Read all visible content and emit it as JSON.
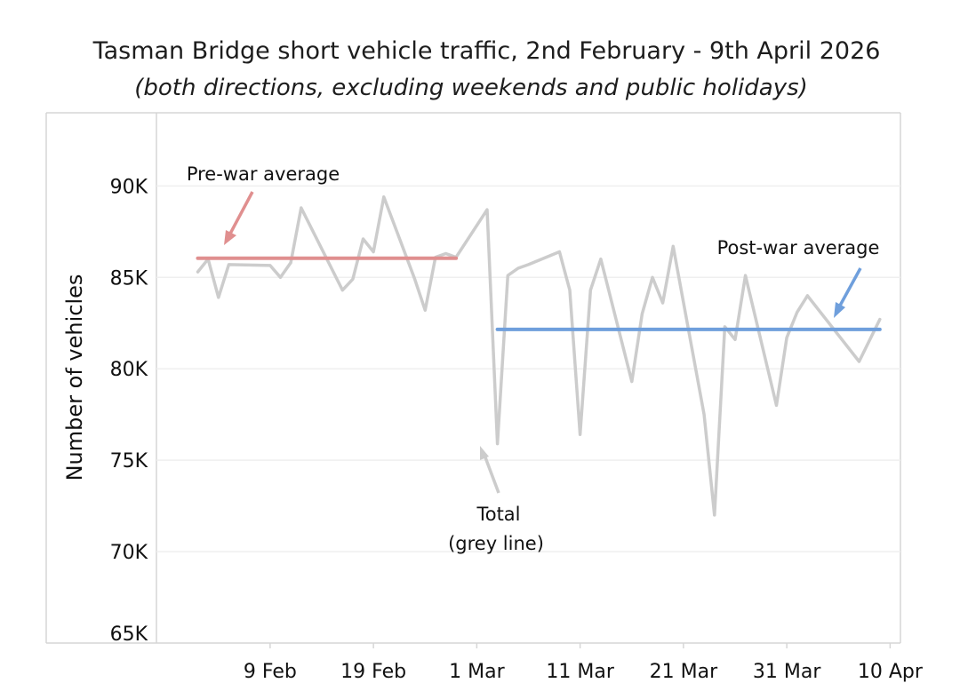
{
  "chart_data": {
    "type": "line",
    "title": "Tasman Bridge short vehicle traffic, 2nd February - 9th April 2026",
    "subtitle": "(both directions, excluding weekends and public holidays)",
    "xlabel": "",
    "ylabel": "Number of vehicles",
    "ylim": [
      65000,
      94000
    ],
    "xlim": [
      "2026-01-29",
      "2026-04-11"
    ],
    "y_ticks": [
      65000,
      70000,
      75000,
      80000,
      85000,
      90000
    ],
    "y_tick_labels": [
      "65K",
      "70K",
      "75K",
      "80K",
      "85K",
      "90K"
    ],
    "x_ticks": [
      "2026-02-09",
      "2026-02-19",
      "2026-03-01",
      "2026-03-11",
      "2026-03-21",
      "2026-03-31",
      "2026-04-10"
    ],
    "x_tick_labels": [
      "9 Feb",
      "19 Feb",
      "1 Mar",
      "11 Mar",
      "21 Mar",
      "31 Mar",
      "10 Apr"
    ],
    "grid": "horizontal",
    "series": [
      {
        "name": "Total",
        "color": "#cccccc",
        "points": [
          [
            "2026-02-02",
            85300
          ],
          [
            "2026-02-03",
            86000
          ],
          [
            "2026-02-04",
            83900
          ],
          [
            "2026-02-05",
            85700
          ],
          [
            "2026-02-09",
            85650
          ],
          [
            "2026-02-10",
            85000
          ],
          [
            "2026-02-11",
            85800
          ],
          [
            "2026-02-12",
            88800
          ],
          [
            "2026-02-16",
            84300
          ],
          [
            "2026-02-17",
            84900
          ],
          [
            "2026-02-18",
            87100
          ],
          [
            "2026-02-19",
            86400
          ],
          [
            "2026-02-20",
            89400
          ],
          [
            "2026-02-23",
            84900
          ],
          [
            "2026-02-24",
            83200
          ],
          [
            "2026-02-25",
            86100
          ],
          [
            "2026-02-26",
            86300
          ],
          [
            "2026-02-27",
            86100
          ],
          [
            "2026-03-02",
            88700
          ],
          [
            "2026-03-03",
            75900
          ],
          [
            "2026-03-04",
            85100
          ],
          [
            "2026-03-05",
            85500
          ],
          [
            "2026-03-06",
            85700
          ],
          [
            "2026-03-09",
            86400
          ],
          [
            "2026-03-10",
            84300
          ],
          [
            "2026-03-11",
            76400
          ],
          [
            "2026-03-12",
            84300
          ],
          [
            "2026-03-13",
            86000
          ],
          [
            "2026-03-16",
            79300
          ],
          [
            "2026-03-17",
            83000
          ],
          [
            "2026-03-18",
            85000
          ],
          [
            "2026-03-19",
            83600
          ],
          [
            "2026-03-20",
            86700
          ],
          [
            "2026-03-23",
            77500
          ],
          [
            "2026-03-24",
            72000
          ],
          [
            "2026-03-25",
            82300
          ],
          [
            "2026-03-26",
            81600
          ],
          [
            "2026-03-27",
            85100
          ],
          [
            "2026-03-30",
            78000
          ],
          [
            "2026-03-31",
            81700
          ],
          [
            "2026-04-01",
            83100
          ],
          [
            "2026-04-02",
            84000
          ],
          [
            "2026-04-07",
            80400
          ],
          [
            "2026-04-09",
            82700
          ]
        ]
      },
      {
        "name": "Pre-war average",
        "color": "#e08f8f",
        "points": [
          [
            "2026-02-02",
            86050
          ],
          [
            "2026-02-27",
            86050
          ]
        ]
      },
      {
        "name": "Post-war average",
        "color": "#6f9fdc",
        "points": [
          [
            "2026-03-03",
            82150
          ],
          [
            "2026-04-09",
            82150
          ]
        ]
      }
    ],
    "annotations": {
      "pre_war": "Pre-war average",
      "post_war": "Post-war average",
      "total_line1": "Total",
      "total_line2": "(grey line)"
    }
  }
}
